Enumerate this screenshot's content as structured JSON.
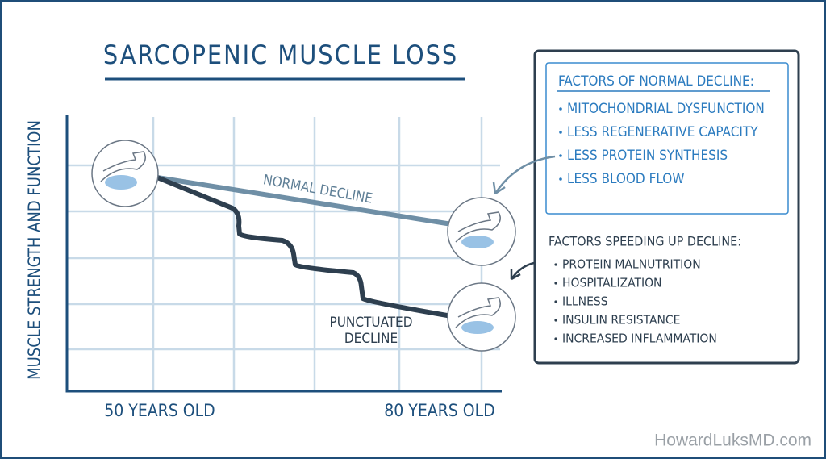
{
  "title": "SARCOPENIC MUSCLE LOSS",
  "y_axis_label": "MUSCLE STRENGTH AND FUNCTION",
  "x_labels": [
    "50 YEARS OLD",
    "80 YEARS OLD"
  ],
  "lines": {
    "normal": "NORMAL DECLINE",
    "punctuated": [
      "PUNCTUATED",
      "DECLINE"
    ]
  },
  "normal_factors": {
    "heading": "FACTORS OF NORMAL DECLINE:",
    "items": [
      "MITOCHONDRIAL DYSFUNCTION",
      "LESS REGENERATIVE CAPACITY",
      "LESS PROTEIN SYNTHESIS",
      "LESS BLOOD FLOW"
    ]
  },
  "speeding_factors": {
    "heading": "FACTORS SPEEDING UP DECLINE:",
    "items": [
      "PROTEIN MALNUTRITION",
      "HOSPITALIZATION",
      "ILLNESS",
      "INSULIN RESISTANCE",
      "INCREASED INFLAMMATION"
    ]
  },
  "watermark": "HowardLuksMD.com"
}
